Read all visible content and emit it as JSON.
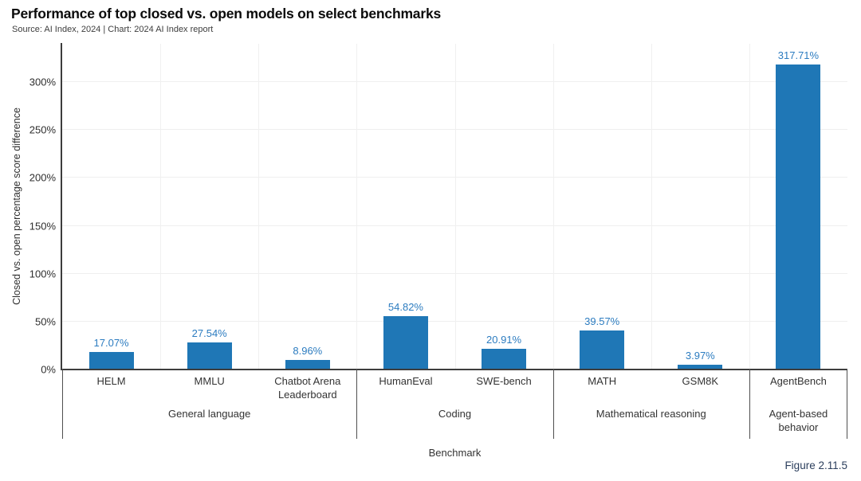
{
  "header": {
    "title": "Performance of top closed vs. open models on select benchmarks",
    "subtitle": "Source: AI Index, 2024 | Chart: 2024 AI Index report"
  },
  "footer": {
    "figure_label": "Figure 2.11.5"
  },
  "chart_data": {
    "type": "bar",
    "title": "Performance of top closed vs. open models on select benchmarks",
    "xlabel": "Benchmark",
    "ylabel": "Closed vs. open percentage score difference",
    "ylim": [
      0,
      340
    ],
    "yticks": [
      0,
      50,
      100,
      150,
      200,
      250,
      300
    ],
    "ytick_labels": [
      "0%",
      "50%",
      "100%",
      "150%",
      "200%",
      "250%",
      "300%"
    ],
    "grid": true,
    "legend_position": "none",
    "bar_color": "#1f77b6",
    "value_label_color": "#2c7cc0",
    "categories": [
      "HELM",
      "MMLU",
      "Chatbot Arena Leaderboard",
      "HumanEval",
      "SWE-bench",
      "MATH",
      "GSM8K",
      "AgentBench"
    ],
    "values": [
      17.07,
      27.54,
      8.96,
      54.82,
      20.91,
      39.57,
      3.97,
      317.71
    ],
    "value_labels": [
      "17.07%",
      "27.54%",
      "8.96%",
      "54.82%",
      "20.91%",
      "39.57%",
      "3.97%",
      "317.71%"
    ],
    "groups": [
      {
        "label": "General language",
        "categories": [
          "HELM",
          "MMLU",
          "Chatbot Arena Leaderboard"
        ],
        "values": [
          17.07,
          27.54,
          8.96
        ]
      },
      {
        "label": "Coding",
        "categories": [
          "HumanEval",
          "SWE-bench"
        ],
        "values": [
          54.82,
          20.91
        ]
      },
      {
        "label": "Mathematical reasoning",
        "categories": [
          "MATH",
          "GSM8K"
        ],
        "values": [
          39.57,
          3.97
        ]
      },
      {
        "label": "Agent-based behavior",
        "categories": [
          "AgentBench"
        ],
        "values": [
          317.71
        ]
      }
    ]
  }
}
